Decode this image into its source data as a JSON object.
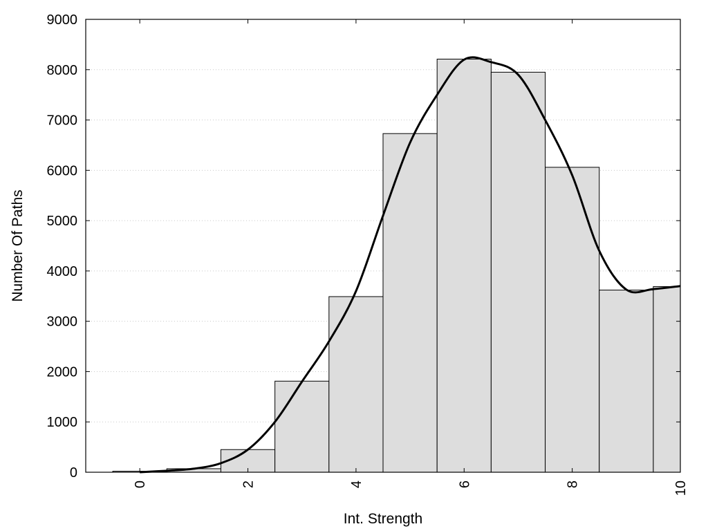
{
  "chart_data": {
    "type": "bar",
    "xlabel": "Int. Strength",
    "ylabel": "Number Of Paths",
    "xlim": [
      -1,
      10
    ],
    "ylim": [
      0,
      9000
    ],
    "x_ticks": [
      0,
      2,
      4,
      6,
      8,
      10
    ],
    "x_tick_labels": [
      "0",
      "2",
      "4",
      "6",
      "8",
      "10"
    ],
    "y_ticks": [
      0,
      1000,
      2000,
      3000,
      4000,
      5000,
      6000,
      7000,
      8000,
      9000
    ],
    "y_tick_labels": [
      "0",
      "1000",
      "2000",
      "3000",
      "4000",
      "5000",
      "6000",
      "7000",
      "8000",
      "9000"
    ],
    "grid": "horizontal dotted",
    "bar_width": 1,
    "bar_color": "#dddddd",
    "x": [
      0,
      1,
      2,
      3,
      4,
      5,
      6,
      7,
      8,
      9,
      10
    ],
    "values": [
      20,
      70,
      450,
      1810,
      3490,
      6730,
      8210,
      7950,
      6060,
      3620,
      3690
    ],
    "curve": {
      "x": [
        0,
        0.5,
        1,
        1.5,
        2,
        2.5,
        3,
        3.5,
        4,
        4.5,
        5,
        5.5,
        6,
        6.5,
        7,
        7.5,
        8,
        8.5,
        9,
        9.5,
        10
      ],
      "y": [
        0,
        30,
        70,
        180,
        450,
        1000,
        1800,
        2600,
        3600,
        5100,
        6550,
        7500,
        8200,
        8150,
        7900,
        7000,
        5900,
        4400,
        3630,
        3640,
        3700
      ]
    },
    "curve_color": "#000000"
  }
}
